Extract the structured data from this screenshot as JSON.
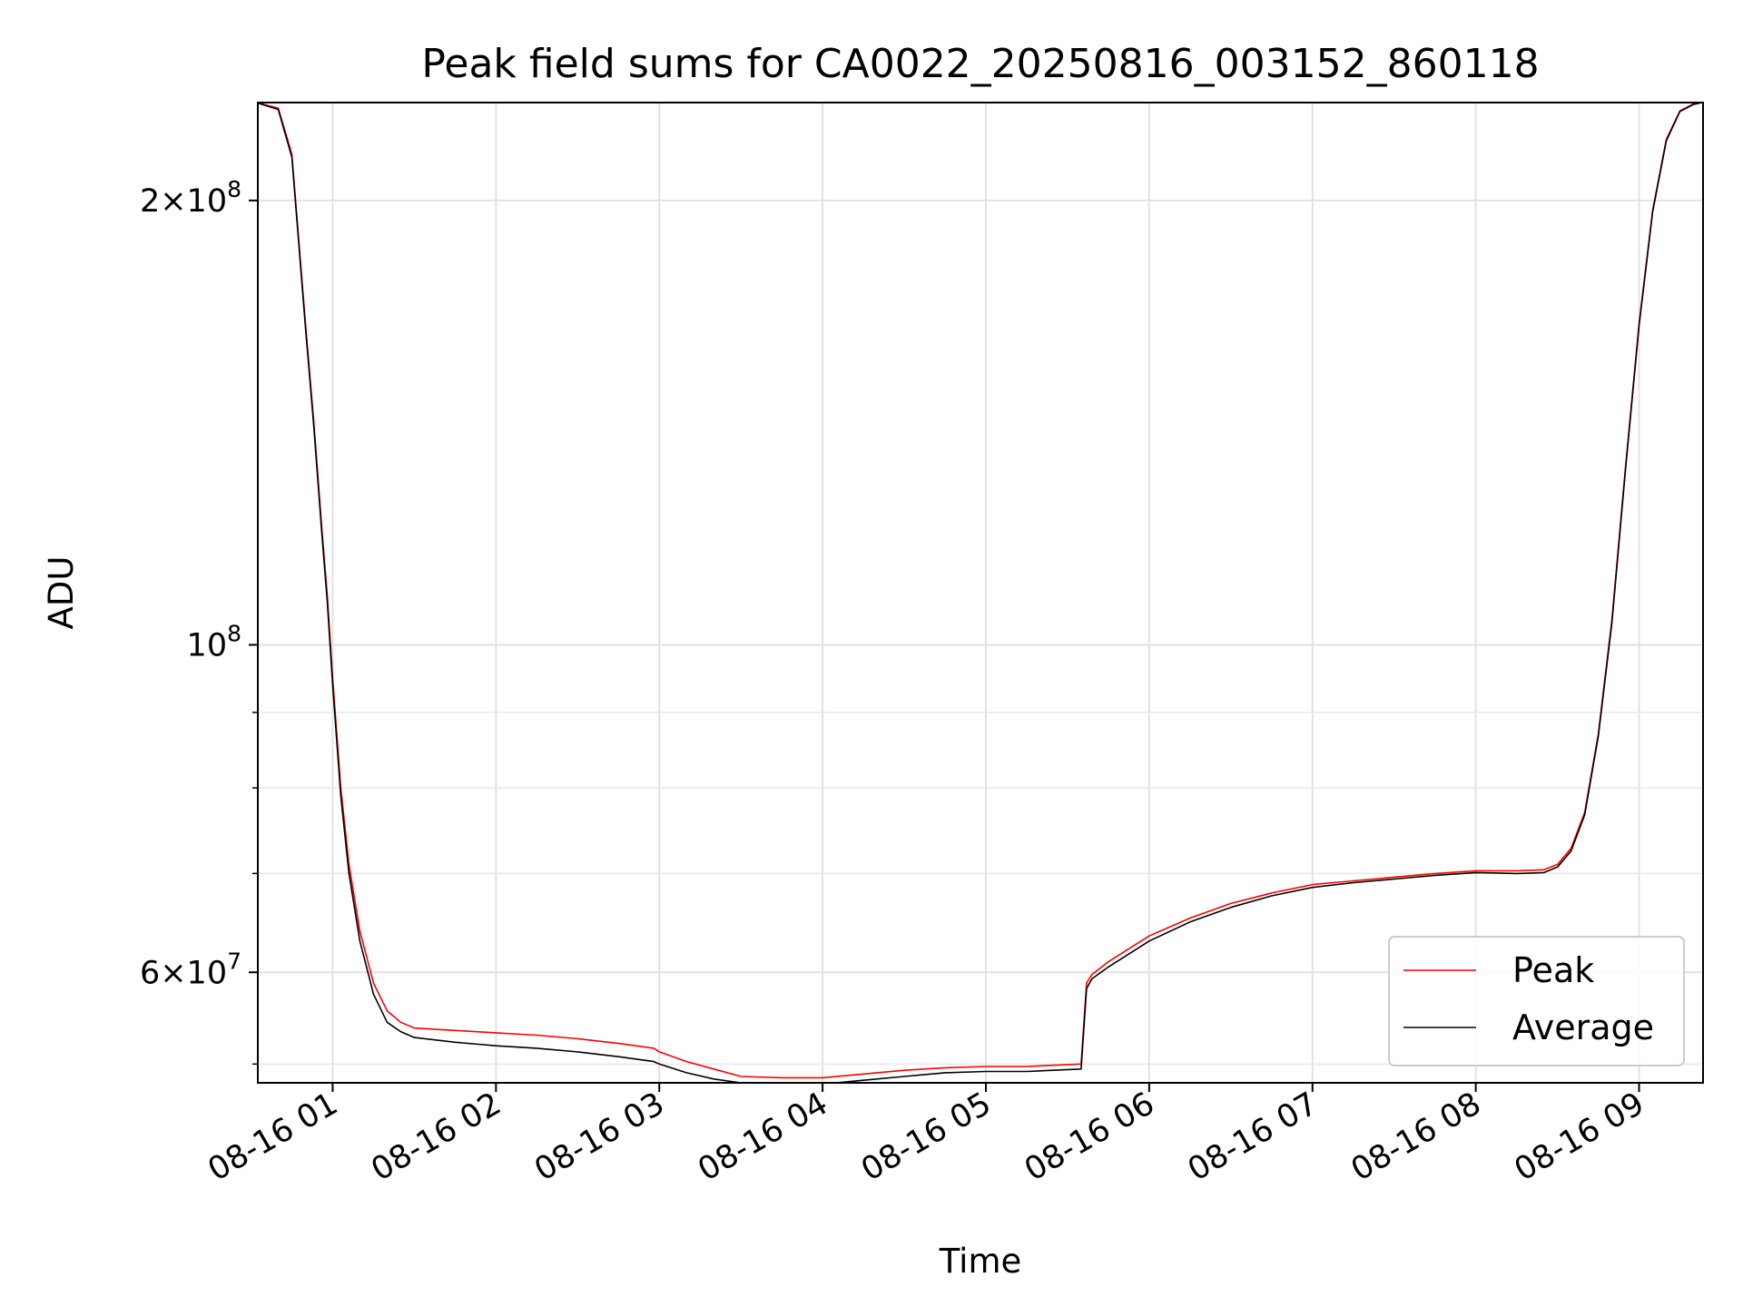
{
  "chart_data": {
    "type": "line",
    "title": "Peak field sums for CA0022_20250816_003152_860118",
    "xlabel": "Time",
    "ylabel": "ADU",
    "yscale": "log",
    "grid": true,
    "legend_position": "lower-right",
    "xlim": [
      "2025-08-16 00:32:30",
      "2025-08-16 09:23:30"
    ],
    "ylim": [
      50500000,
      233000000
    ],
    "x_ticks": [
      {
        "value": "2025-08-16 01:00",
        "label": "08-16 01"
      },
      {
        "value": "2025-08-16 02:00",
        "label": "08-16 02"
      },
      {
        "value": "2025-08-16 03:00",
        "label": "08-16 03"
      },
      {
        "value": "2025-08-16 04:00",
        "label": "08-16 04"
      },
      {
        "value": "2025-08-16 05:00",
        "label": "08-16 05"
      },
      {
        "value": "2025-08-16 06:00",
        "label": "08-16 06"
      },
      {
        "value": "2025-08-16 07:00",
        "label": "08-16 07"
      },
      {
        "value": "2025-08-16 08:00",
        "label": "08-16 08"
      },
      {
        "value": "2025-08-16 09:00",
        "label": "08-16 09"
      }
    ],
    "y_major_ticks": [
      {
        "value": 60000000,
        "mantissa": "6",
        "exponent": "7"
      },
      {
        "value": 100000000,
        "mantissa": "",
        "exponent": "8"
      },
      {
        "value": 200000000,
        "mantissa": "2",
        "exponent": "8"
      }
    ],
    "y_minor_ticks": [
      52000000,
      70000000,
      80000000,
      90000000
    ],
    "series": [
      {
        "name": "Peak",
        "color": "#ff0000",
        "x": [
          "2025-08-16 00:32",
          "2025-08-16 00:40",
          "2025-08-16 00:45",
          "2025-08-16 00:50",
          "2025-08-16 00:53",
          "2025-08-16 00:56",
          "2025-08-16 00:58",
          "2025-08-16 01:00",
          "2025-08-16 01:03",
          "2025-08-16 01:06",
          "2025-08-16 01:10",
          "2025-08-16 01:15",
          "2025-08-16 01:20",
          "2025-08-16 01:25",
          "2025-08-16 01:30",
          "2025-08-16 01:45",
          "2025-08-16 02:00",
          "2025-08-16 02:15",
          "2025-08-16 02:30",
          "2025-08-16 02:45",
          "2025-08-16 02:58",
          "2025-08-16 03:00",
          "2025-08-16 03:10",
          "2025-08-16 03:20",
          "2025-08-16 03:30",
          "2025-08-16 03:45",
          "2025-08-16 04:00",
          "2025-08-16 04:15",
          "2025-08-16 04:30",
          "2025-08-16 04:45",
          "2025-08-16 05:00",
          "2025-08-16 05:15",
          "2025-08-16 05:35",
          "2025-08-16 05:37",
          "2025-08-16 05:39",
          "2025-08-16 05:45",
          "2025-08-16 06:00",
          "2025-08-16 06:15",
          "2025-08-16 06:30",
          "2025-08-16 06:45",
          "2025-08-16 07:00",
          "2025-08-16 07:15",
          "2025-08-16 07:30",
          "2025-08-16 07:45",
          "2025-08-16 08:00",
          "2025-08-16 08:15",
          "2025-08-16 08:25",
          "2025-08-16 08:30",
          "2025-08-16 08:35",
          "2025-08-16 08:40",
          "2025-08-16 08:45",
          "2025-08-16 08:50",
          "2025-08-16 08:55",
          "2025-08-16 09:00",
          "2025-08-16 09:05",
          "2025-08-16 09:10",
          "2025-08-16 09:15",
          "2025-08-16 09:20",
          "2025-08-16 09:23"
        ],
        "y": [
          233000000,
          231000000,
          215000000,
          165000000,
          142000000,
          120000000,
          108000000,
          95000000,
          80000000,
          71000000,
          64000000,
          59000000,
          56500000,
          55500000,
          55000000,
          54800000,
          54600000,
          54400000,
          54100000,
          53700000,
          53300000,
          53000000,
          52200000,
          51600000,
          51000000,
          50900000,
          50900000,
          51200000,
          51500000,
          51700000,
          51800000,
          51800000,
          52000000,
          59000000,
          59800000,
          61000000,
          63500000,
          65300000,
          66800000,
          67900000,
          68800000,
          69200000,
          69600000,
          70000000,
          70300000,
          70300000,
          70400000,
          71000000,
          72800000,
          77000000,
          87000000,
          104000000,
          132000000,
          165000000,
          197000000,
          220000000,
          230000000,
          232500000,
          233000000
        ]
      },
      {
        "name": "Average",
        "color": "#000000",
        "x": [
          "2025-08-16 00:32",
          "2025-08-16 00:40",
          "2025-08-16 00:45",
          "2025-08-16 00:50",
          "2025-08-16 00:53",
          "2025-08-16 00:56",
          "2025-08-16 00:58",
          "2025-08-16 01:00",
          "2025-08-16 01:03",
          "2025-08-16 01:06",
          "2025-08-16 01:10",
          "2025-08-16 01:15",
          "2025-08-16 01:20",
          "2025-08-16 01:25",
          "2025-08-16 01:30",
          "2025-08-16 01:45",
          "2025-08-16 02:00",
          "2025-08-16 02:15",
          "2025-08-16 02:30",
          "2025-08-16 02:45",
          "2025-08-16 02:58",
          "2025-08-16 03:00",
          "2025-08-16 03:10",
          "2025-08-16 03:20",
          "2025-08-16 03:30",
          "2025-08-16 03:45",
          "2025-08-16 04:00",
          "2025-08-16 04:15",
          "2025-08-16 04:30",
          "2025-08-16 04:45",
          "2025-08-16 05:00",
          "2025-08-16 05:15",
          "2025-08-16 05:35",
          "2025-08-16 05:37",
          "2025-08-16 05:39",
          "2025-08-16 05:45",
          "2025-08-16 06:00",
          "2025-08-16 06:15",
          "2025-08-16 06:30",
          "2025-08-16 06:45",
          "2025-08-16 07:00",
          "2025-08-16 07:15",
          "2025-08-16 07:30",
          "2025-08-16 07:45",
          "2025-08-16 08:00",
          "2025-08-16 08:15",
          "2025-08-16 08:25",
          "2025-08-16 08:30",
          "2025-08-16 08:35",
          "2025-08-16 08:40",
          "2025-08-16 08:45",
          "2025-08-16 08:50",
          "2025-08-16 08:55",
          "2025-08-16 09:00",
          "2025-08-16 09:05",
          "2025-08-16 09:10",
          "2025-08-16 09:15",
          "2025-08-16 09:20",
          "2025-08-16 09:23"
        ],
        "y": [
          233000000,
          230500000,
          214000000,
          164000000,
          141000000,
          119000000,
          107000000,
          94000000,
          79000000,
          70000000,
          63000000,
          58000000,
          55500000,
          54700000,
          54200000,
          53800000,
          53500000,
          53300000,
          53000000,
          52600000,
          52200000,
          52000000,
          51300000,
          50800000,
          50500000,
          50400000,
          50400000,
          50700000,
          51000000,
          51300000,
          51400000,
          51400000,
          51600000,
          58500000,
          59400000,
          60500000,
          63000000,
          64900000,
          66400000,
          67600000,
          68500000,
          69000000,
          69400000,
          69800000,
          70100000,
          70000000,
          70100000,
          70700000,
          72500000,
          76700000,
          86700000,
          103500000,
          131500000,
          164500000,
          196500000,
          219500000,
          229800000,
          232300000,
          233000000
        ]
      }
    ]
  }
}
